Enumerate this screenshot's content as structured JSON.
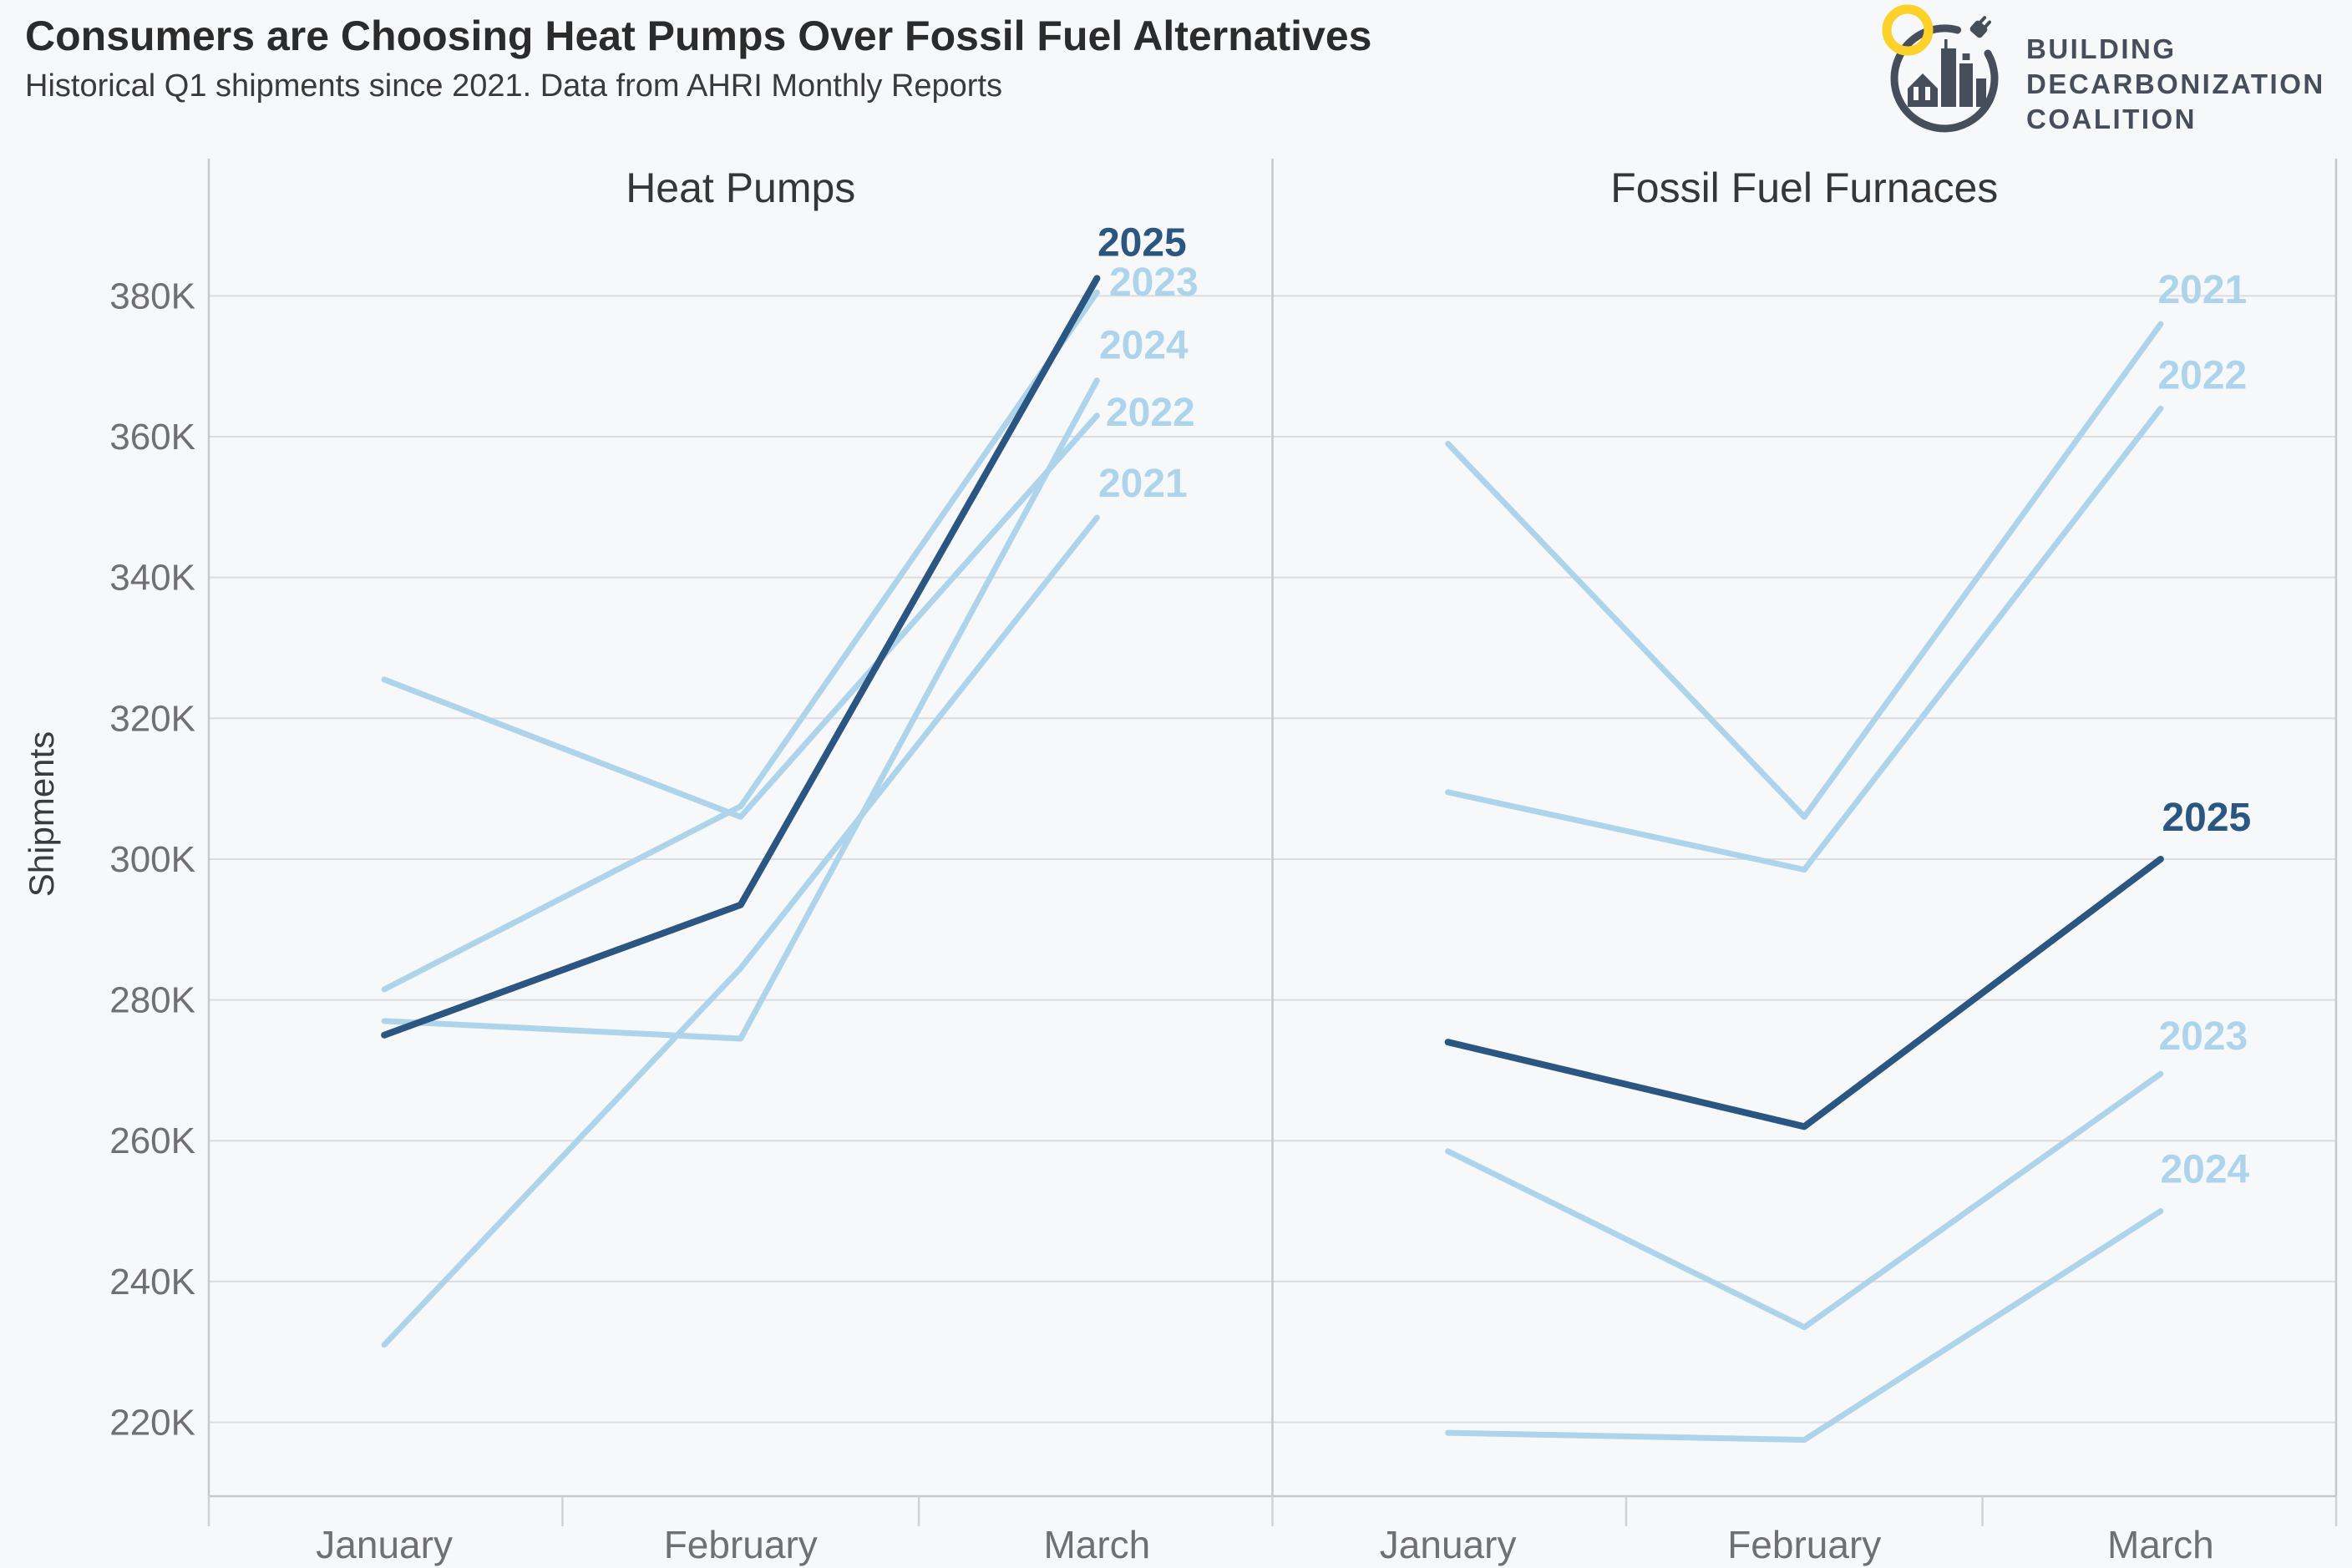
{
  "header": {
    "title": "Consumers are Choosing Heat Pumps Over Fossil Fuel Alternatives",
    "subtitle": "Historical Q1 shipments since 2021. Data from AHRI Monthly Reports"
  },
  "logo": {
    "line1": "BUILDING",
    "line2": "DECARBONIZATION",
    "line3": "COALITION"
  },
  "theme": {
    "background": "#f7f8fa",
    "title_color": "#2b2b2b",
    "subtitle_color": "#3a3a3a",
    "axis_text_color": "#707073",
    "grid_color": "#dcdcdf",
    "spine_color": "#c8c8cb",
    "logo_slate": "#474e5b",
    "logo_yellow": "#fcd12a"
  },
  "chart_data": {
    "type": "line",
    "title": "Consumers are Choosing Heat Pumps Over Fossil Fuel Alternatives",
    "subtitle": "Historical Q1 shipments since 2021. Data from AHRI Monthly Reports",
    "ylabel": "Shipments",
    "unit": "thousands of shipments (K)",
    "categories": [
      "January",
      "February",
      "March"
    ],
    "ylim_k": [
      209.5,
      399.5
    ],
    "yticks": [
      {
        "v": 220,
        "label": "220K"
      },
      {
        "v": 240,
        "label": "240K"
      },
      {
        "v": 260,
        "label": "260K"
      },
      {
        "v": 280,
        "label": "280K"
      },
      {
        "v": 300,
        "label": "300K"
      },
      {
        "v": 320,
        "label": "320K"
      },
      {
        "v": 340,
        "label": "340K"
      },
      {
        "v": 360,
        "label": "360K"
      },
      {
        "v": 380,
        "label": "380K"
      }
    ],
    "grid": true,
    "legend": "direct line end labels (year names at March endpoints)",
    "colors": {
      "light": "#aed4ec",
      "dark": "#2b5682"
    },
    "panels": [
      {
        "title": "Heat Pumps",
        "series": [
          {
            "name": "2021",
            "color_key": "light",
            "values_k": [
              231,
              284.5,
              348.5
            ],
            "label_offset": [
              55,
              -41
            ]
          },
          {
            "name": "2022",
            "color_key": "light",
            "values_k": [
              325.5,
              306,
              363
            ],
            "label_offset": [
              64,
              -4
            ]
          },
          {
            "name": "2023",
            "color_key": "light",
            "values_k": [
              281.5,
              307.5,
              380.5
            ],
            "label_offset": [
              68,
              -12
            ]
          },
          {
            "name": "2024",
            "color_key": "light",
            "values_k": [
              277,
              274.5,
              368
            ],
            "label_offset": [
              56,
              -42
            ]
          },
          {
            "name": "2025",
            "color_key": "dark",
            "values_k": [
              275,
              293.5,
              382.5
            ],
            "label_offset": [
              54,
              -43
            ]
          }
        ]
      },
      {
        "title": "Fossil Fuel Furnaces",
        "series": [
          {
            "name": "2021",
            "color_key": "light",
            "values_k": [
              359,
              306,
              376
            ],
            "label_offset": [
              50,
              -41
            ]
          },
          {
            "name": "2022",
            "color_key": "light",
            "values_k": [
              309.5,
              298.5,
              364
            ],
            "label_offset": [
              50,
              -40
            ]
          },
          {
            "name": "2023",
            "color_key": "light",
            "values_k": [
              258.5,
              233.5,
              269.5
            ],
            "label_offset": [
              51,
              -45
            ]
          },
          {
            "name": "2024",
            "color_key": "light",
            "values_k": [
              218.5,
              217.5,
              250
            ],
            "label_offset": [
              53,
              -50
            ]
          },
          {
            "name": "2025",
            "color_key": "dark",
            "values_k": [
              274,
              262,
              300
            ],
            "label_offset": [
              55,
              -50
            ]
          }
        ]
      }
    ]
  }
}
